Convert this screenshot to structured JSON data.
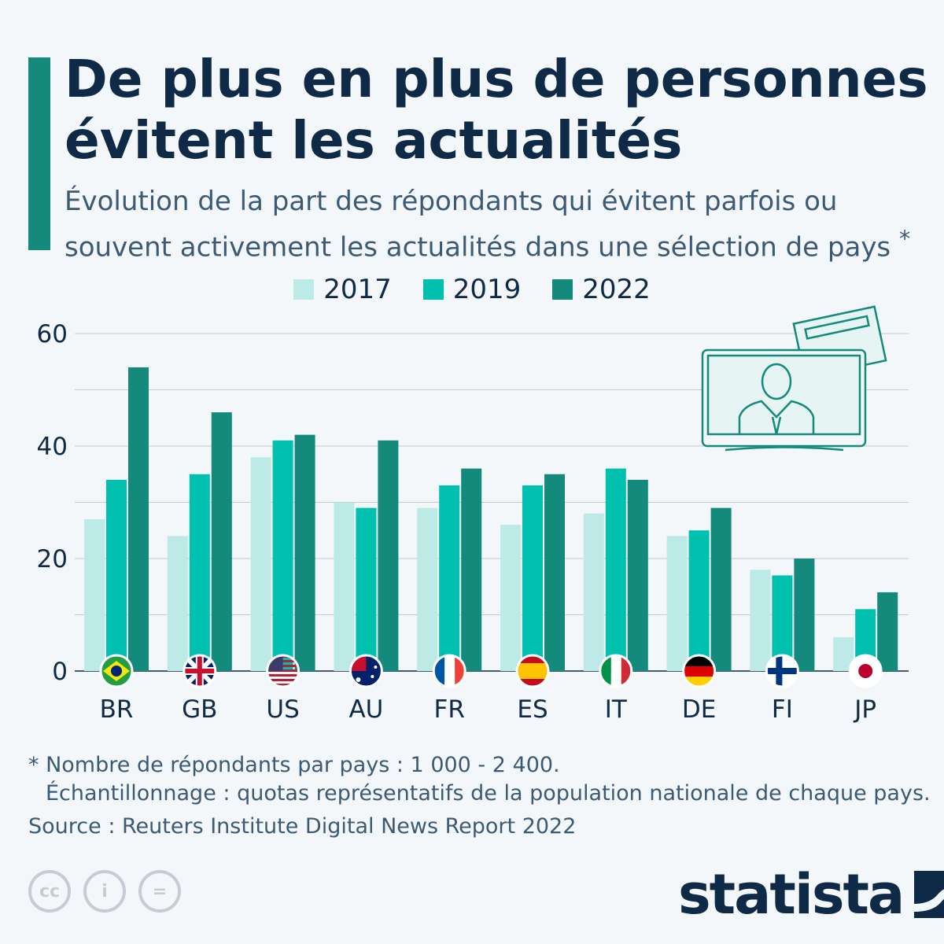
{
  "title": "De plus en plus de personnes évitent les actualités",
  "subtitle": "Évolution de la part des répondants qui évitent parfois ou souvent activement les actualités dans une sélection de pays",
  "subtitle_mark": "*",
  "notes": {
    "line1": "* Nombre de répondants par pays : 1 000 - 2 400.",
    "line2": "Échantillonnage : quotas représentatifs de la population nationale de chaque pays.",
    "source": "Source : Reuters Institute Digital News Report 2022"
  },
  "brand": "statista",
  "license_icons": [
    "cc-icon",
    "attribution-icon",
    "no-derivatives-icon"
  ],
  "chart_data": {
    "type": "bar",
    "title": "De plus en plus de personnes évitent les actualités",
    "categories": [
      "BR",
      "GB",
      "US",
      "AU",
      "FR",
      "ES",
      "IT",
      "DE",
      "FI",
      "JP"
    ],
    "series": [
      {
        "name": "2017",
        "color": "#bdeae6",
        "values": [
          27,
          24,
          38,
          30,
          29,
          26,
          28,
          24,
          18,
          6
        ]
      },
      {
        "name": "2019",
        "color": "#00c1b0",
        "values": [
          34,
          35,
          41,
          29,
          33,
          33,
          36,
          25,
          17,
          11
        ]
      },
      {
        "name": "2022",
        "color": "#138a7c",
        "values": [
          54,
          46,
          42,
          41,
          36,
          35,
          34,
          29,
          20,
          14
        ]
      }
    ],
    "ylim": [
      0,
      60
    ],
    "yticks": [
      0,
      20,
      40,
      60
    ],
    "grid": true,
    "legend": "top-center",
    "xlabel": "",
    "ylabel": ""
  }
}
